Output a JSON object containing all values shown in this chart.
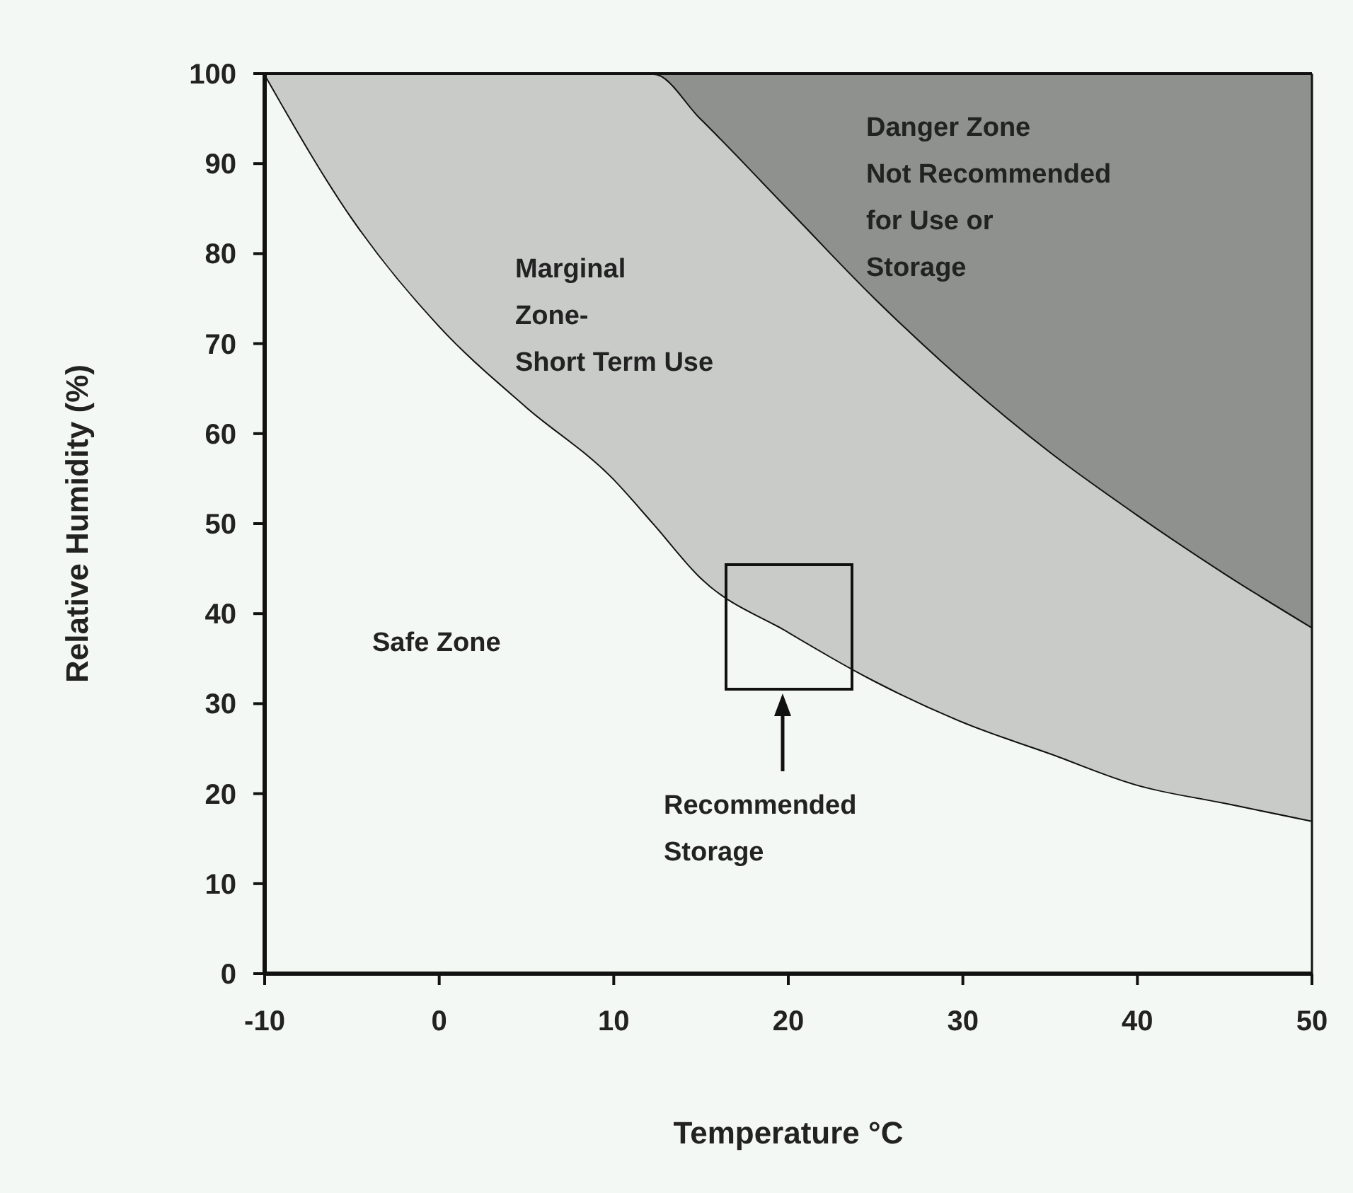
{
  "chart_data": {
    "type": "area",
    "stacked": true,
    "xlabel": "Temperature °C",
    "ylabel": "Relative Humidity (%)",
    "xlim": [
      -10,
      50
    ],
    "ylim": [
      0,
      100
    ],
    "xticks": [
      -10,
      0,
      10,
      20,
      30,
      40,
      50
    ],
    "yticks": [
      0,
      10,
      20,
      30,
      40,
      50,
      60,
      70,
      80,
      90,
      100
    ],
    "grid": false,
    "x": [
      -10,
      -5,
      0,
      5,
      10,
      12.3,
      15,
      20,
      25,
      30,
      35,
      40,
      45,
      50
    ],
    "series": [
      {
        "color": "#f4f8f4",
        "values": [
          100,
          84,
          72,
          63,
          55,
          50,
          44,
          38,
          32.5,
          28,
          24.5,
          21,
          19,
          17
        ]
      },
      {
        "color": "#c9cbc9",
        "values": [
          0,
          16,
          28,
          37,
          45,
          50,
          51,
          47,
          42.5,
          38,
          33.5,
          30,
          25.5,
          21.5
        ]
      },
      {
        "color": "#8e918e",
        "values": [
          0,
          0,
          0,
          0,
          0,
          0,
          5,
          15,
          25,
          34,
          42,
          49,
          55.5,
          61.5
        ]
      }
    ],
    "annotations": [
      "Danger Zone\nNot Recommended\nfor Use or\nStorage",
      "Marginal\nZone-\nShort Term Use",
      "Safe Zone",
      "Recommended\nStorage"
    ]
  }
}
